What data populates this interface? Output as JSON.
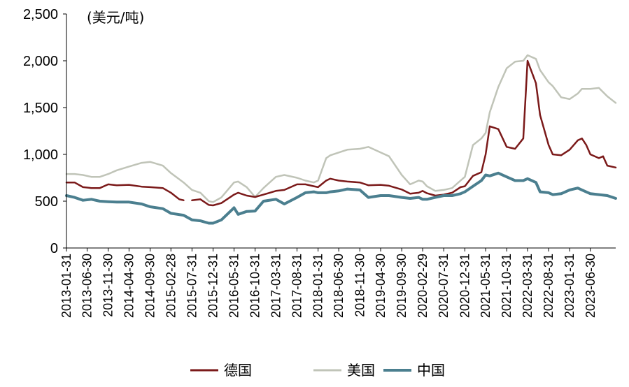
{
  "chart_data": {
    "type": "line",
    "ylabel": "(美元/吨)",
    "ylim": [
      0,
      2500
    ],
    "yticks": [
      0,
      500,
      1000,
      1500,
      2000,
      2500
    ],
    "ytick_labels": [
      "0",
      "500",
      "1,000",
      "1,500",
      "2,000",
      "2,500"
    ],
    "grid": false,
    "legend_position": "bottom",
    "x_start": "2013-01-31",
    "x_end": "2023-12-31",
    "x_tick_labels": [
      "2013-01-31",
      "2013-06-30",
      "2013-11-30",
      "2014-04-30",
      "2014-09-30",
      "2015-02-28",
      "2015-07-31",
      "2015-12-31",
      "2016-05-31",
      "2016-10-31",
      "2017-03-31",
      "2017-08-31",
      "2018-01-31",
      "2018-06-30",
      "2018-11-30",
      "2019-04-30",
      "2019-09-30",
      "2020-02-29",
      "2020-07-31",
      "2020-12-31",
      "2021-05-31",
      "2021-10-31",
      "2022-03-31",
      "2022-08-31",
      "2023-01-31",
      "2023-06-30"
    ],
    "series": [
      {
        "name": "德国",
        "color": "#7b1a1a",
        "values": [
          [
            "2013-01-31",
            700
          ],
          [
            "2013-03-31",
            700
          ],
          [
            "2013-05-31",
            650
          ],
          [
            "2013-07-31",
            640
          ],
          [
            "2013-09-30",
            640
          ],
          [
            "2013-11-30",
            680
          ],
          [
            "2014-01-31",
            670
          ],
          [
            "2014-04-30",
            675
          ],
          [
            "2014-07-31",
            655
          ],
          [
            "2014-09-30",
            650
          ],
          [
            "2014-12-31",
            640
          ],
          [
            "2015-02-28",
            590
          ],
          [
            "2015-04-30",
            520
          ],
          [
            "2015-05-31",
            510
          ],
          [
            "2015-07-31",
            510
          ],
          [
            "2015-09-30",
            520
          ],
          [
            "2015-11-30",
            460
          ],
          [
            "2015-12-31",
            455
          ],
          [
            "2016-02-29",
            480
          ],
          [
            "2016-05-31",
            570
          ],
          [
            "2016-06-30",
            590
          ],
          [
            "2016-08-31",
            560
          ],
          [
            "2016-10-31",
            545
          ],
          [
            "2016-12-31",
            570
          ],
          [
            "2017-03-31",
            610
          ],
          [
            "2017-05-31",
            620
          ],
          [
            "2017-08-31",
            680
          ],
          [
            "2017-10-31",
            680
          ],
          [
            "2017-12-31",
            660
          ],
          [
            "2018-01-31",
            650
          ],
          [
            "2018-03-31",
            720
          ],
          [
            "2018-04-30",
            740
          ],
          [
            "2018-06-30",
            720
          ],
          [
            "2018-08-31",
            710
          ],
          [
            "2018-11-30",
            700
          ],
          [
            "2019-01-31",
            670
          ],
          [
            "2019-04-30",
            675
          ],
          [
            "2019-06-30",
            665
          ],
          [
            "2019-09-30",
            625
          ],
          [
            "2019-11-30",
            580
          ],
          [
            "2020-01-31",
            590
          ],
          [
            "2020-02-29",
            610
          ],
          [
            "2020-03-31",
            585
          ],
          [
            "2020-05-31",
            560
          ],
          [
            "2020-07-31",
            570
          ],
          [
            "2020-09-30",
            590
          ],
          [
            "2020-11-30",
            650
          ],
          [
            "2020-12-31",
            660
          ],
          [
            "2021-02-28",
            770
          ],
          [
            "2021-04-30",
            810
          ],
          [
            "2021-05-31",
            1000
          ],
          [
            "2021-06-30",
            1300
          ],
          [
            "2021-08-31",
            1270
          ],
          [
            "2021-10-31",
            1080
          ],
          [
            "2021-12-31",
            1060
          ],
          [
            "2022-02-28",
            1170
          ],
          [
            "2022-03-31",
            2000
          ],
          [
            "2022-05-31",
            1760
          ],
          [
            "2022-06-30",
            1420
          ],
          [
            "2022-08-31",
            1100
          ],
          [
            "2022-09-30",
            1000
          ],
          [
            "2022-11-30",
            990
          ],
          [
            "2023-01-31",
            1050
          ],
          [
            "2023-03-31",
            1150
          ],
          [
            "2023-04-30",
            1170
          ],
          [
            "2023-05-31",
            1100
          ],
          [
            "2023-06-30",
            1000
          ],
          [
            "2023-08-31",
            960
          ],
          [
            "2023-09-30",
            980
          ],
          [
            "2023-10-31",
            880
          ],
          [
            "2023-12-31",
            860
          ]
        ]
      },
      {
        "name": "美国",
        "color": "#c0c4b8",
        "values": [
          [
            "2013-01-31",
            790
          ],
          [
            "2013-03-31",
            790
          ],
          [
            "2013-05-31",
            780
          ],
          [
            "2013-07-31",
            760
          ],
          [
            "2013-09-30",
            760
          ],
          [
            "2013-11-30",
            790
          ],
          [
            "2014-01-31",
            830
          ],
          [
            "2014-04-30",
            870
          ],
          [
            "2014-07-31",
            910
          ],
          [
            "2014-09-30",
            920
          ],
          [
            "2014-12-31",
            880
          ],
          [
            "2015-02-28",
            800
          ],
          [
            "2015-05-31",
            700
          ],
          [
            "2015-07-31",
            620
          ],
          [
            "2015-09-30",
            590
          ],
          [
            "2015-11-30",
            500
          ],
          [
            "2015-12-31",
            490
          ],
          [
            "2016-02-29",
            540
          ],
          [
            "2016-05-31",
            700
          ],
          [
            "2016-06-30",
            710
          ],
          [
            "2016-08-31",
            650
          ],
          [
            "2016-10-31",
            545
          ],
          [
            "2016-12-31",
            640
          ],
          [
            "2017-03-31",
            760
          ],
          [
            "2017-05-31",
            780
          ],
          [
            "2017-08-31",
            750
          ],
          [
            "2017-10-31",
            720
          ],
          [
            "2017-12-31",
            700
          ],
          [
            "2018-01-31",
            720
          ],
          [
            "2018-03-31",
            960
          ],
          [
            "2018-04-30",
            990
          ],
          [
            "2018-06-30",
            1020
          ],
          [
            "2018-08-31",
            1050
          ],
          [
            "2018-11-30",
            1060
          ],
          [
            "2019-01-31",
            1080
          ],
          [
            "2019-04-30",
            1020
          ],
          [
            "2019-06-30",
            980
          ],
          [
            "2019-09-30",
            780
          ],
          [
            "2019-11-30",
            680
          ],
          [
            "2020-01-31",
            720
          ],
          [
            "2020-02-29",
            710
          ],
          [
            "2020-03-31",
            660
          ],
          [
            "2020-05-31",
            610
          ],
          [
            "2020-07-31",
            620
          ],
          [
            "2020-09-30",
            640
          ],
          [
            "2020-11-30",
            720
          ],
          [
            "2020-12-31",
            760
          ],
          [
            "2021-02-28",
            1100
          ],
          [
            "2021-04-30",
            1170
          ],
          [
            "2021-05-31",
            1230
          ],
          [
            "2021-06-30",
            1450
          ],
          [
            "2021-08-31",
            1720
          ],
          [
            "2021-10-31",
            1920
          ],
          [
            "2021-12-31",
            1990
          ],
          [
            "2022-02-28",
            2000
          ],
          [
            "2022-03-31",
            2060
          ],
          [
            "2022-05-31",
            2020
          ],
          [
            "2022-06-30",
            1900
          ],
          [
            "2022-08-31",
            1770
          ],
          [
            "2022-09-30",
            1730
          ],
          [
            "2022-11-30",
            1610
          ],
          [
            "2023-01-31",
            1590
          ],
          [
            "2023-03-31",
            1650
          ],
          [
            "2023-04-30",
            1700
          ],
          [
            "2023-06-30",
            1700
          ],
          [
            "2023-08-31",
            1710
          ],
          [
            "2023-10-31",
            1620
          ],
          [
            "2023-12-31",
            1550
          ]
        ]
      },
      {
        "name": "中国",
        "color": "#4b7f8f",
        "values": [
          [
            "2013-01-31",
            560
          ],
          [
            "2013-03-31",
            540
          ],
          [
            "2013-05-31",
            510
          ],
          [
            "2013-07-31",
            520
          ],
          [
            "2013-09-30",
            500
          ],
          [
            "2013-11-30",
            495
          ],
          [
            "2014-01-31",
            490
          ],
          [
            "2014-04-30",
            490
          ],
          [
            "2014-07-31",
            470
          ],
          [
            "2014-09-30",
            440
          ],
          [
            "2014-12-31",
            420
          ],
          [
            "2015-02-28",
            370
          ],
          [
            "2015-05-31",
            350
          ],
          [
            "2015-07-31",
            300
          ],
          [
            "2015-09-30",
            290
          ],
          [
            "2015-11-30",
            265
          ],
          [
            "2015-12-31",
            265
          ],
          [
            "2016-02-29",
            300
          ],
          [
            "2016-05-31",
            430
          ],
          [
            "2016-06-30",
            360
          ],
          [
            "2016-08-31",
            390
          ],
          [
            "2016-10-31",
            395
          ],
          [
            "2016-12-31",
            500
          ],
          [
            "2017-03-31",
            520
          ],
          [
            "2017-05-31",
            470
          ],
          [
            "2017-08-31",
            540
          ],
          [
            "2017-10-31",
            590
          ],
          [
            "2017-12-31",
            600
          ],
          [
            "2018-01-31",
            590
          ],
          [
            "2018-03-31",
            590
          ],
          [
            "2018-04-30",
            600
          ],
          [
            "2018-06-30",
            610
          ],
          [
            "2018-08-31",
            630
          ],
          [
            "2018-11-30",
            620
          ],
          [
            "2019-01-31",
            540
          ],
          [
            "2019-04-30",
            560
          ],
          [
            "2019-06-30",
            560
          ],
          [
            "2019-09-30",
            540
          ],
          [
            "2019-11-30",
            530
          ],
          [
            "2020-01-31",
            540
          ],
          [
            "2020-02-29",
            520
          ],
          [
            "2020-03-31",
            520
          ],
          [
            "2020-05-31",
            540
          ],
          [
            "2020-07-31",
            560
          ],
          [
            "2020-09-30",
            560
          ],
          [
            "2020-11-30",
            580
          ],
          [
            "2020-12-31",
            600
          ],
          [
            "2021-02-28",
            660
          ],
          [
            "2021-04-30",
            720
          ],
          [
            "2021-05-31",
            780
          ],
          [
            "2021-06-30",
            770
          ],
          [
            "2021-08-31",
            800
          ],
          [
            "2021-10-31",
            760
          ],
          [
            "2021-12-31",
            720
          ],
          [
            "2022-02-28",
            720
          ],
          [
            "2022-03-31",
            740
          ],
          [
            "2022-05-31",
            700
          ],
          [
            "2022-06-30",
            600
          ],
          [
            "2022-08-31",
            590
          ],
          [
            "2022-09-30",
            570
          ],
          [
            "2022-11-30",
            580
          ],
          [
            "2023-01-31",
            620
          ],
          [
            "2023-03-31",
            640
          ],
          [
            "2023-04-30",
            620
          ],
          [
            "2023-06-30",
            580
          ],
          [
            "2023-08-31",
            570
          ],
          [
            "2023-10-31",
            560
          ],
          [
            "2023-12-31",
            530
          ]
        ]
      }
    ]
  }
}
